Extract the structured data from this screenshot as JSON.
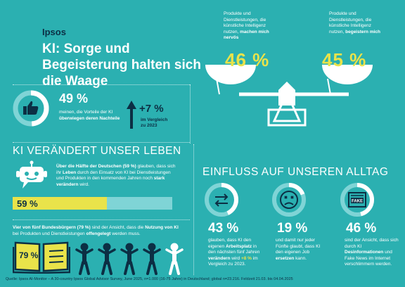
{
  "header": {
    "brand": "Ipsos",
    "title": "KI: Sorge und Begeisterung halten sich die Waage"
  },
  "scale": {
    "left": {
      "caption_pre": "Produkte und Dienstleistungen, die künstliche Intelligenz nutzen, ",
      "caption_bold": "machen mich nervös",
      "value": "46 %"
    },
    "right": {
      "caption_pre": "Produkte und Dienstleistungen, die künstliche Intelligenz nutzen, ",
      "caption_bold": "begeistern mich",
      "value": "45 %"
    }
  },
  "advantages": {
    "value": "49 %",
    "text_pre": "meinen, die Vorteile der KI ",
    "text_bold": "überwiegen deren Nachteile",
    "fraction": 0.49,
    "change": "+7 %",
    "change_text": "im Vergleich zu 2023"
  },
  "section_life": {
    "heading": "KI VERÄNDERT UNSER LEBEN",
    "p1_b1": "Über die Hälfte der Deutschen (59 %)",
    "p1_t1": " glauben, dass sich ihr ",
    "p1_b2": "Leben",
    "p1_t2": " durch den Einsatz von KI bei Dienstleistungen und Produkten in den kommenden Jahren noch ",
    "p1_b3": "stark verändern",
    "p1_t3": " wird.",
    "bar_value": "59 %",
    "bar_fraction": 0.59,
    "p2_b1": "Vier von fünf Bundesbürgern (79 %)",
    "p2_t1": " sind der Ansicht, dass die ",
    "p2_b2": "Nutzung von KI",
    "p2_t2": " bei Produkten und Dienstleistungen ",
    "p2_b3": "offengelegt",
    "p2_t3": " werden muss.",
    "book_value": "79 %"
  },
  "section_daily": {
    "heading": "EINFLUSS AUF UNSEREN ALLTAG",
    "items": [
      {
        "value": "43 %",
        "fraction": 0.43,
        "t1": "glauben, dass KI den eigenen ",
        "b1": "Arbeitsplatz",
        "t2": " in den nächsten fünf Jahren ",
        "b2": "verändern",
        "t3": " wird ",
        "hl": "+8 %",
        "t4": " im Vergleich zu 2023."
      },
      {
        "value": "19 %",
        "fraction": 0.19,
        "t1": "und damit nur jeder Fünfte glaubt, dass KI den eigenen Job ",
        "b1": "ersetzen",
        "t2": " kann."
      },
      {
        "value": "46 %",
        "fraction": 0.46,
        "t1": "sind der Ansicht, dass sich durch KI ",
        "b1": "Desinformationen",
        "t2": " und Fake News im Internet verschlimmern werden.",
        "fake_label": "FAKE"
      }
    ]
  },
  "footer": "Quelle: Ipsos AI-Monitor – A 30-country Ipsos Global Advisor Survey, June 2025, n=1.000 (16-75 Jahre) in Deutschland; global n=23.216. Feldzeit 21.03. bis 04.04.2025",
  "colors": {
    "background": "#2bb0b1",
    "navy": "#0c2f44",
    "yellow": "#e9e34a",
    "light": "#7fd4d6"
  }
}
